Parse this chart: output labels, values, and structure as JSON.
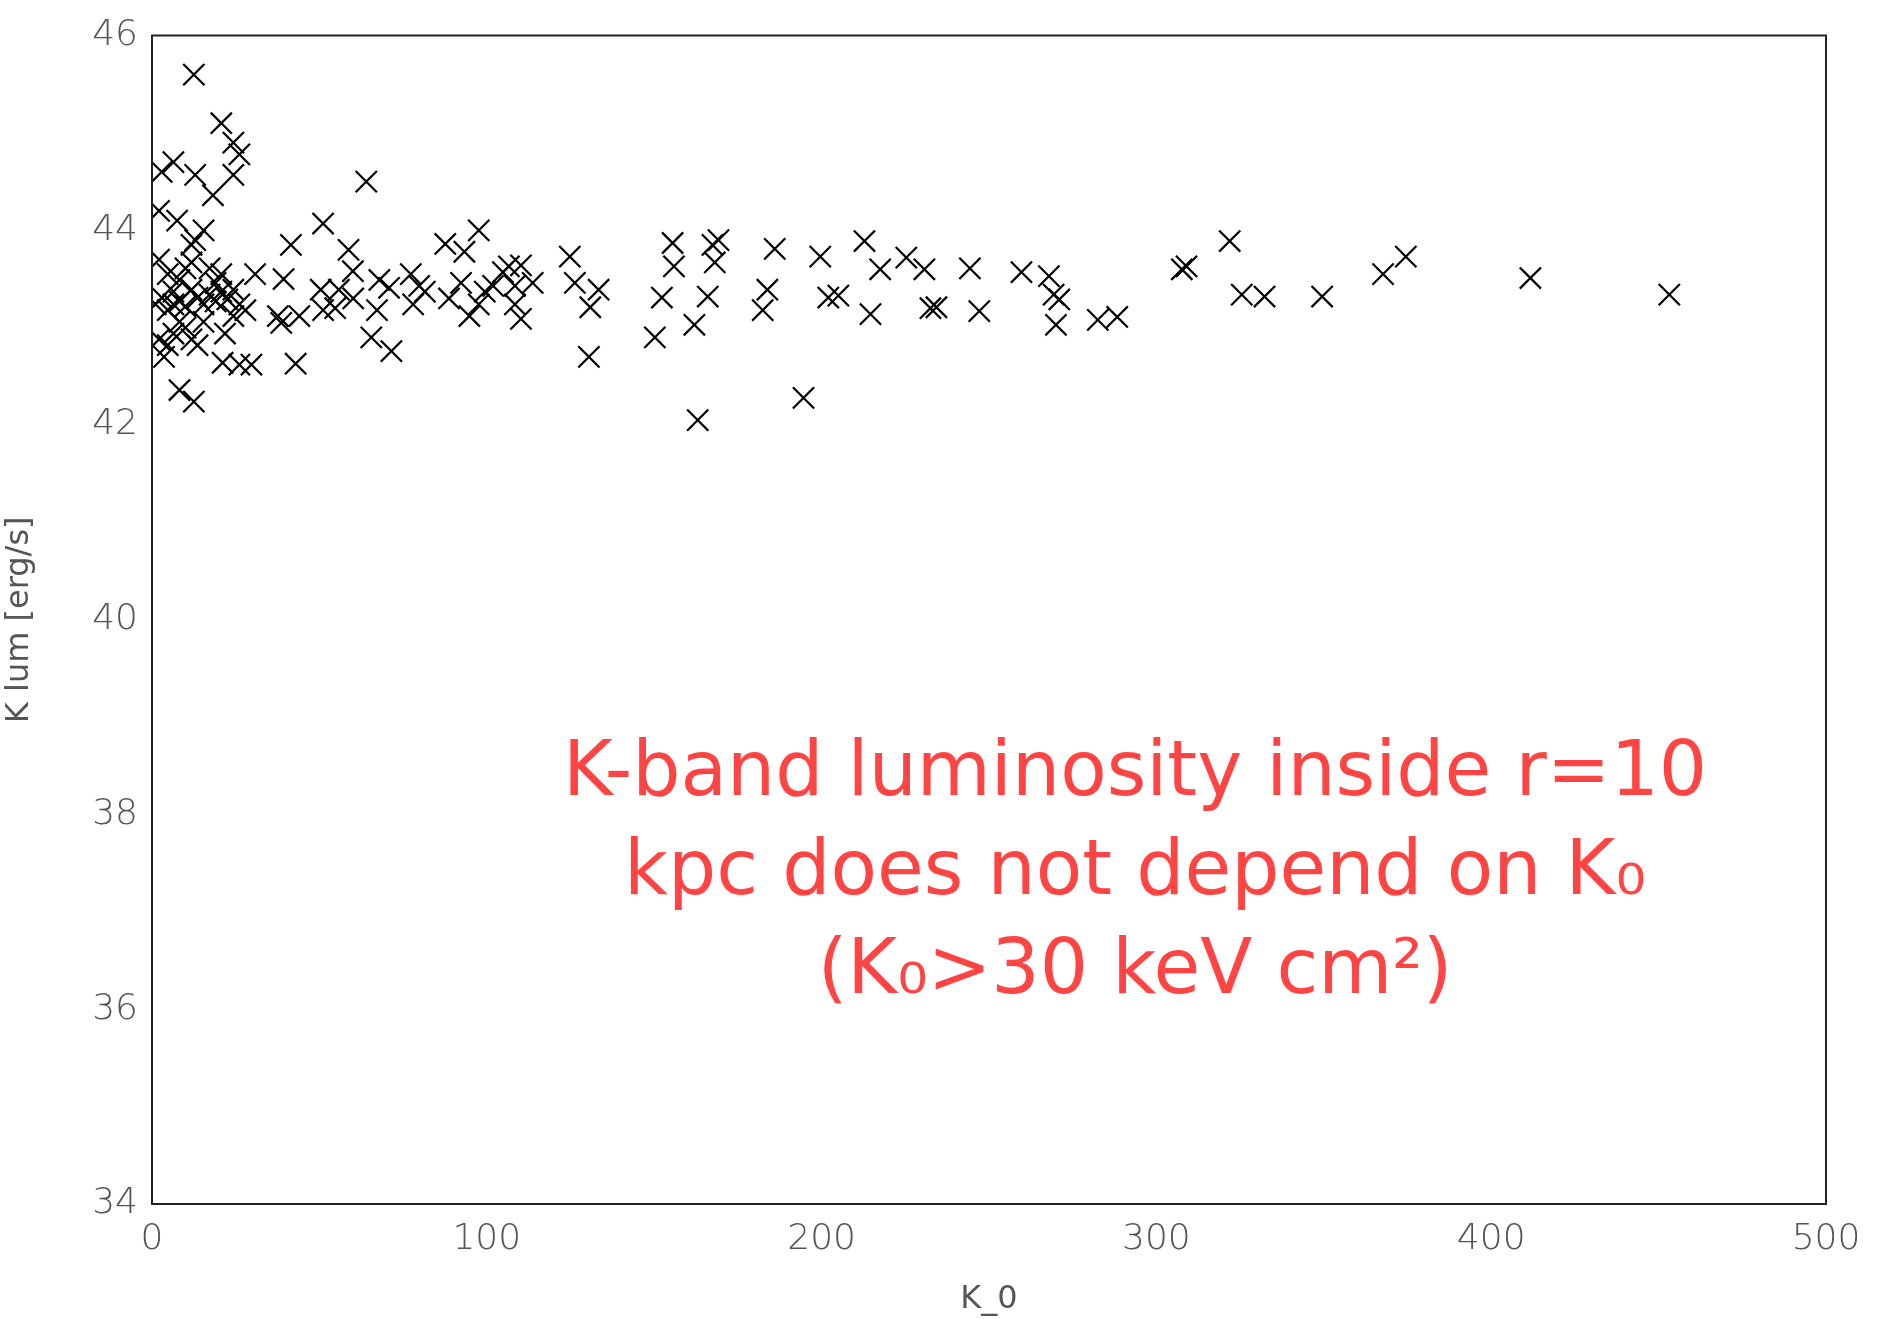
{
  "chart_data": {
    "type": "scatter",
    "xlabel": "K_0",
    "ylabel": "K lum [erg/s]",
    "xlim": [
      0,
      500
    ],
    "xticks": [
      0,
      100,
      200,
      300,
      400,
      500
    ],
    "ylim": [
      34,
      46
    ],
    "yticks": [
      34,
      36,
      38,
      40,
      42,
      44,
      46
    ],
    "grid": false,
    "legend": false,
    "marker": "cross",
    "annotations": [
      "K-band luminosity inside r=10 kpc does not depend on K₀ (K₀>30 keV cm²)"
    ],
    "series": [
      {
        "color": "#000000",
        "x": [
          12.5,
          20.7,
          24.3,
          26.1,
          24.3,
          6.4,
          12.9,
          2.9,
          18.2,
          64,
          2.1,
          7.5,
          12.9,
          15.4,
          11.8,
          2.1,
          51.1,
          41.5,
          58.7,
          30.8,
          39.3,
          60,
          87.6,
          93.3,
          97.6,
          106.6,
          110.2,
          124.8,
          113.7,
          126.3,
          133.4,
          130.9,
          130.5,
          150.2,
          152.3,
          155.5,
          155.9,
          163,
          162,
          166,
          167.4,
          169.2,
          168.1,
          182.4,
          183.8,
          186,
          194.6,
          199.6,
          202,
          205,
          212.8,
          214.6,
          217.5,
          225.3,
          230.7,
          232.5,
          234.3,
          244.3,
          247.1,
          259.7,
          267.9,
          269.3,
          270,
          271,
          282.5,
          288.3,
          307.6,
          309,
          321.9,
          325.5,
          332.3,
          349.5,
          367.7,
          374.5,
          411.7,
          453.2,
          3.6,
          8.2,
          12.5,
          21.1,
          26.1,
          29.7,
          42.9,
          71.5,
          65.5,
          54.7,
          51.1,
          37.6,
          38.6,
          44,
          50.4,
          55.8,
          67.9,
          70.8,
          77.3,
          79.8,
          81.5,
          78,
          88.7,
          92.3,
          94.8,
          97.6,
          99.4,
          101.9,
          104.8,
          108.4,
          108.4,
          110.2,
          67.2,
          60.1,
          1.1,
          2.9,
          4.7,
          6.4,
          8.2,
          10,
          11.8,
          13.6,
          15.4,
          17.2,
          19,
          20.7,
          22.5,
          24.3,
          26.1,
          8.2,
          6.4,
          10,
          11.8,
          13.6,
          4.7,
          2.1,
          4.7,
          8.2,
          10,
          11.8,
          17.2,
          19,
          20.7,
          21.8,
          24.3,
          27.9,
          15.4,
          6.4
        ],
        "values": [
          45.6,
          45.1,
          44.9,
          44.78,
          44.57,
          44.7,
          44.57,
          44.6,
          44.36,
          44.5,
          44.2,
          44.1,
          43.9,
          44,
          43.85,
          43.7,
          44.07,
          43.85,
          43.8,
          43.55,
          43.5,
          43.58,
          43.86,
          43.78,
          44,
          43.63,
          43.64,
          43.73,
          43.46,
          43.46,
          43.39,
          43.21,
          42.7,
          42.9,
          43.31,
          43.87,
          43.63,
          42.05,
          43.03,
          43.32,
          43.85,
          43.9,
          43.67,
          43.18,
          43.39,
          43.81,
          42.28,
          43.73,
          43.31,
          43.33,
          43.89,
          43.14,
          43.6,
          43.72,
          43.6,
          43.2,
          43.21,
          43.61,
          43.17,
          43.57,
          43.53,
          43.34,
          43.03,
          43.29,
          43.08,
          43.11,
          43.6,
          43.63,
          43.89,
          43.34,
          43.32,
          43.32,
          43.55,
          43.73,
          43.51,
          43.34,
          42.7,
          42.36,
          42.24,
          42.64,
          42.62,
          42.62,
          42.63,
          42.76,
          42.9,
          43.2,
          43.18,
          43.12,
          43.05,
          43.12,
          43.39,
          43.39,
          43.49,
          43.41,
          43.55,
          43.43,
          43.37,
          43.24,
          43.3,
          43.46,
          43.12,
          43.24,
          43.37,
          43.43,
          43.57,
          43.43,
          43.24,
          43.09,
          43.18,
          43.3,
          43.24,
          43.31,
          43.18,
          43.37,
          43.27,
          43.22,
          43.39,
          43.31,
          43.24,
          43.34,
          43.27,
          43.37,
          43.29,
          43.39,
          43.24,
          43.06,
          42.94,
          43,
          42.88,
          42.82,
          42.82,
          42.88,
          43.55,
          43.49,
          43.61,
          43.67,
          43.61,
          43.46,
          43.55,
          42.94,
          43.12,
          43.18,
          43.06,
          43.24
        ]
      }
    ]
  }
}
